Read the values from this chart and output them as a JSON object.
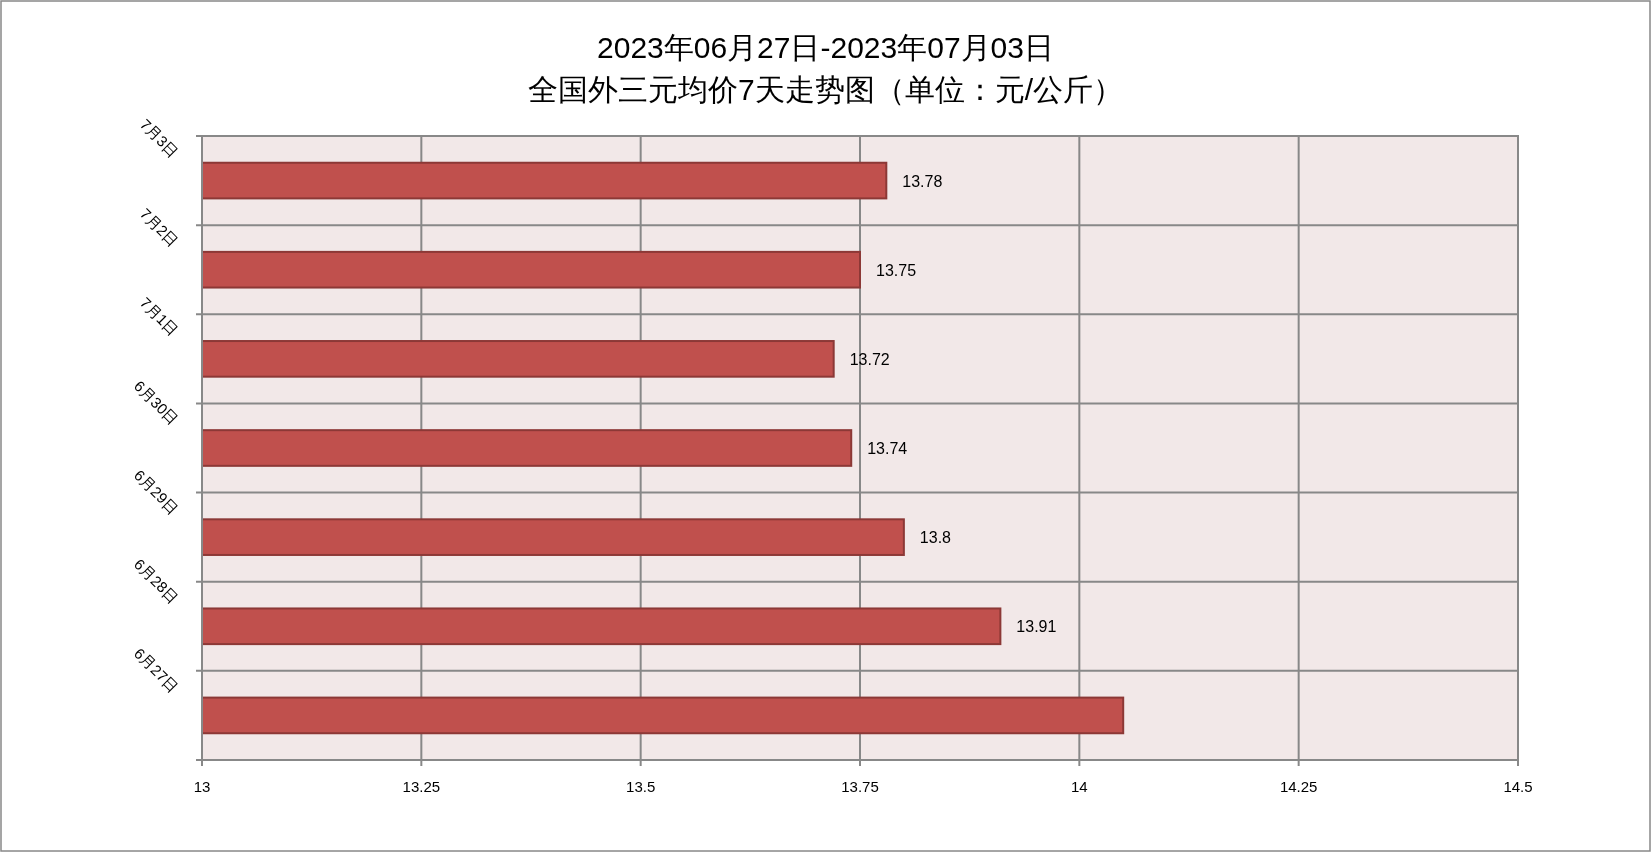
{
  "chart_data": {
    "type": "bar",
    "orientation": "horizontal",
    "title": "2023年06月27日-2023年07月03日",
    "subtitle": "全国外三元均价7天走势图（单位：元/公斤）",
    "categories": [
      "7月3日",
      "7月2日",
      "7月1日",
      "6月30日",
      "6月29日",
      "6月28日",
      "6月27日"
    ],
    "values": [
      13.78,
      13.75,
      13.72,
      13.74,
      13.8,
      13.91,
      14.05
    ],
    "value_labels": [
      "13.78",
      "13.75",
      "13.72",
      "13.74",
      "13.8",
      "13.91",
      null
    ],
    "color": "#c0504d",
    "xlim": [
      13,
      14.5
    ],
    "xticks": [
      13,
      13.25,
      13.5,
      13.75,
      14,
      14.25,
      14.5
    ],
    "grid": true
  }
}
